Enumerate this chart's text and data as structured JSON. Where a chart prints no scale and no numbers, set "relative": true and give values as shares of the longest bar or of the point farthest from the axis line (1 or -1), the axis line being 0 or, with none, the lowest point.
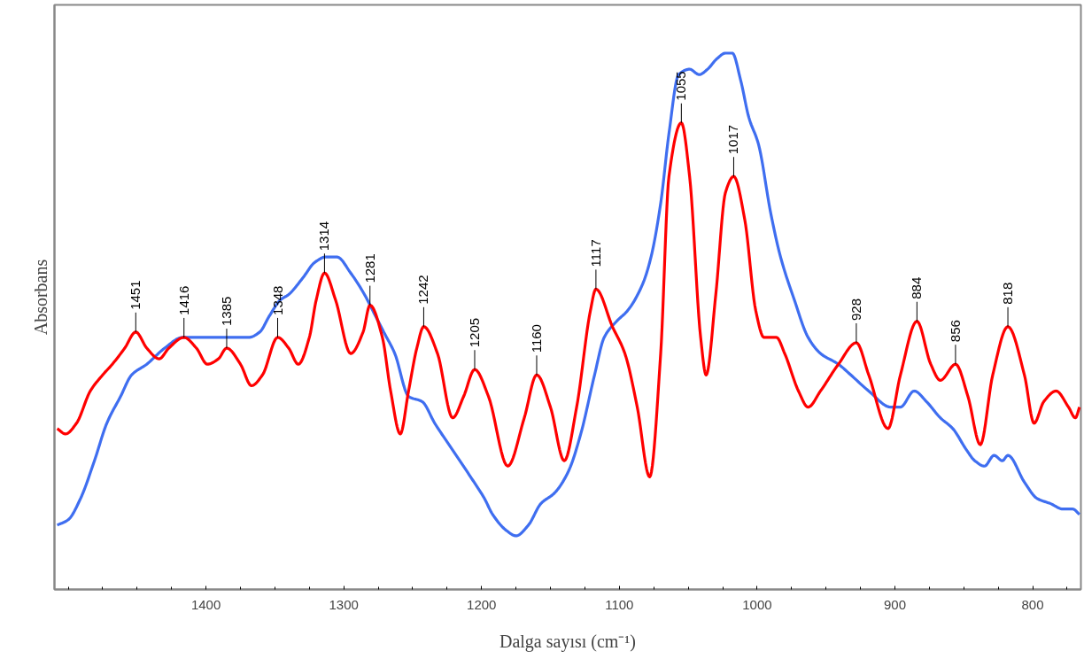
{
  "chart_data": {
    "type": "line",
    "relative": true,
    "xlabel": "Dalga sayısı (cm⁻¹)",
    "ylabel": "Absorbans",
    "xlim": [
      1510,
      765
    ],
    "xticks": [
      {
        "value": 1500,
        "label": null
      },
      {
        "value": 1475,
        "label": null
      },
      {
        "value": 1450,
        "label": null
      },
      {
        "value": 1425,
        "label": null
      },
      1400,
      {
        "value": 1375,
        "label": null
      },
      {
        "value": 1350,
        "label": null
      },
      {
        "value": 1325,
        "label": null
      },
      1300,
      {
        "value": 1275,
        "label": null
      },
      {
        "value": 1250,
        "label": null
      },
      {
        "value": 1225,
        "label": null
      },
      1200,
      {
        "value": 1175,
        "label": null
      },
      {
        "value": 1150,
        "label": null
      },
      {
        "value": 1125,
        "label": null
      },
      1100,
      {
        "value": 1075,
        "label": null
      },
      {
        "value": 1050,
        "label": null
      },
      {
        "value": 1025,
        "label": null
      },
      1000,
      {
        "value": 975,
        "label": null
      },
      {
        "value": 950,
        "label": null
      },
      {
        "value": 925,
        "label": null
      },
      900,
      {
        "value": 875,
        "label": null
      },
      {
        "value": 850,
        "label": null
      },
      {
        "value": 825,
        "label": null
      },
      800,
      {
        "value": 775,
        "label": null
      }
    ],
    "grid": false,
    "line_style": "solid",
    "marker": "none",
    "series": [
      {
        "color": "#3f6ef0",
        "x": [
          1508,
          1500,
          1491,
          1481,
          1472,
          1462,
          1454,
          1443,
          1430,
          1417,
          1404,
          1385,
          1369,
          1361,
          1354,
          1346,
          1340,
          1330,
          1321,
          1313,
          1305,
          1295,
          1285,
          1279,
          1271,
          1263,
          1253,
          1243,
          1234,
          1221,
          1208,
          1198,
          1192,
          1182,
          1175,
          1166,
          1157,
          1147,
          1137,
          1128,
          1118,
          1111,
          1102,
          1094,
          1083,
          1077,
          1070,
          1064,
          1057,
          1049,
          1042,
          1036,
          1029,
          1023,
          1018,
          1012,
          1006,
          999,
          990,
          983,
          973,
          963,
          954,
          941,
          932,
          919,
          903,
          896,
          886,
          877,
          867,
          858,
          848,
          842,
          835,
          828,
          822,
          818,
          806,
          797,
          787,
          778,
          771,
          766
        ],
        "values": [
          0.12,
          0.13,
          0.17,
          0.24,
          0.31,
          0.36,
          0.4,
          0.42,
          0.45,
          0.47,
          0.47,
          0.47,
          0.47,
          0.48,
          0.51,
          0.54,
          0.55,
          0.58,
          0.61,
          0.62,
          0.62,
          0.59,
          0.55,
          0.52,
          0.48,
          0.44,
          0.36,
          0.35,
          0.31,
          0.26,
          0.21,
          0.17,
          0.14,
          0.11,
          0.1,
          0.12,
          0.16,
          0.18,
          0.22,
          0.29,
          0.4,
          0.47,
          0.5,
          0.52,
          0.57,
          0.62,
          0.72,
          0.85,
          0.96,
          0.97,
          0.96,
          0.97,
          0.99,
          1.0,
          1.0,
          0.95,
          0.88,
          0.83,
          0.7,
          0.62,
          0.54,
          0.47,
          0.44,
          0.42,
          0.4,
          0.37,
          0.34,
          0.34,
          0.37,
          0.35,
          0.32,
          0.3,
          0.26,
          0.24,
          0.23,
          0.25,
          0.24,
          0.25,
          0.2,
          0.17,
          0.16,
          0.15,
          0.15,
          0.14
        ]
      },
      {
        "color": "#ff0000",
        "x": [
          1508,
          1502,
          1494,
          1484,
          1475,
          1468,
          1459,
          1451,
          1443,
          1434,
          1427,
          1416,
          1407,
          1399,
          1391,
          1385,
          1375,
          1367,
          1359,
          1348,
          1340,
          1333,
          1325,
          1320,
          1314,
          1306,
          1295,
          1286,
          1281,
          1272,
          1266,
          1259,
          1253,
          1247,
          1242,
          1232,
          1221,
          1213,
          1205,
          1195,
          1181,
          1169,
          1160,
          1150,
          1140,
          1131,
          1121,
          1117,
          1105,
          1096,
          1087,
          1078,
          1070,
          1064,
          1055,
          1049,
          1041,
          1037,
          1030,
          1023,
          1017,
          1009,
          1001,
          995,
          986,
          980,
          970,
          963,
          954,
          941,
          928,
          919,
          905,
          896,
          884,
          874,
          867,
          856,
          847,
          838,
          829,
          818,
          806,
          799,
          792,
          783,
          774,
          769,
          766
        ],
        "values": [
          0.3,
          0.29,
          0.31,
          0.37,
          0.4,
          0.42,
          0.45,
          0.48,
          0.45,
          0.43,
          0.45,
          0.47,
          0.45,
          0.42,
          0.43,
          0.45,
          0.42,
          0.38,
          0.4,
          0.47,
          0.45,
          0.42,
          0.47,
          0.54,
          0.59,
          0.54,
          0.44,
          0.48,
          0.53,
          0.47,
          0.37,
          0.29,
          0.37,
          0.45,
          0.49,
          0.44,
          0.32,
          0.36,
          0.41,
          0.36,
          0.23,
          0.32,
          0.4,
          0.34,
          0.24,
          0.34,
          0.52,
          0.56,
          0.49,
          0.44,
          0.34,
          0.21,
          0.44,
          0.77,
          0.87,
          0.77,
          0.47,
          0.4,
          0.55,
          0.74,
          0.77,
          0.69,
          0.52,
          0.47,
          0.47,
          0.44,
          0.37,
          0.34,
          0.37,
          0.42,
          0.46,
          0.4,
          0.3,
          0.4,
          0.5,
          0.42,
          0.39,
          0.42,
          0.36,
          0.27,
          0.4,
          0.49,
          0.4,
          0.31,
          0.35,
          0.37,
          0.34,
          0.32,
          0.34
        ]
      }
    ],
    "annotations": [
      {
        "text": "1451",
        "x": 1451,
        "y": 0.48
      },
      {
        "text": "1416",
        "x": 1416,
        "y": 0.47
      },
      {
        "text": "1385",
        "x": 1385,
        "y": 0.45
      },
      {
        "text": "1348",
        "x": 1348,
        "y": 0.47
      },
      {
        "text": "1314",
        "x": 1314,
        "y": 0.59
      },
      {
        "text": "1281",
        "x": 1281,
        "y": 0.53
      },
      {
        "text": "1242",
        "x": 1242,
        "y": 0.49
      },
      {
        "text": "1205",
        "x": 1205,
        "y": 0.41
      },
      {
        "text": "1160",
        "x": 1160,
        "y": 0.4
      },
      {
        "text": "1117",
        "x": 1117,
        "y": 0.56
      },
      {
        "text": "1055",
        "x": 1055,
        "y": 0.87
      },
      {
        "text": "1017",
        "x": 1017,
        "y": 0.77
      },
      {
        "text": "928",
        "x": 928,
        "y": 0.46
      },
      {
        "text": "884",
        "x": 884,
        "y": 0.5
      },
      {
        "text": "856",
        "x": 856,
        "y": 0.42
      },
      {
        "text": "818",
        "x": 818,
        "y": 0.49
      }
    ]
  }
}
